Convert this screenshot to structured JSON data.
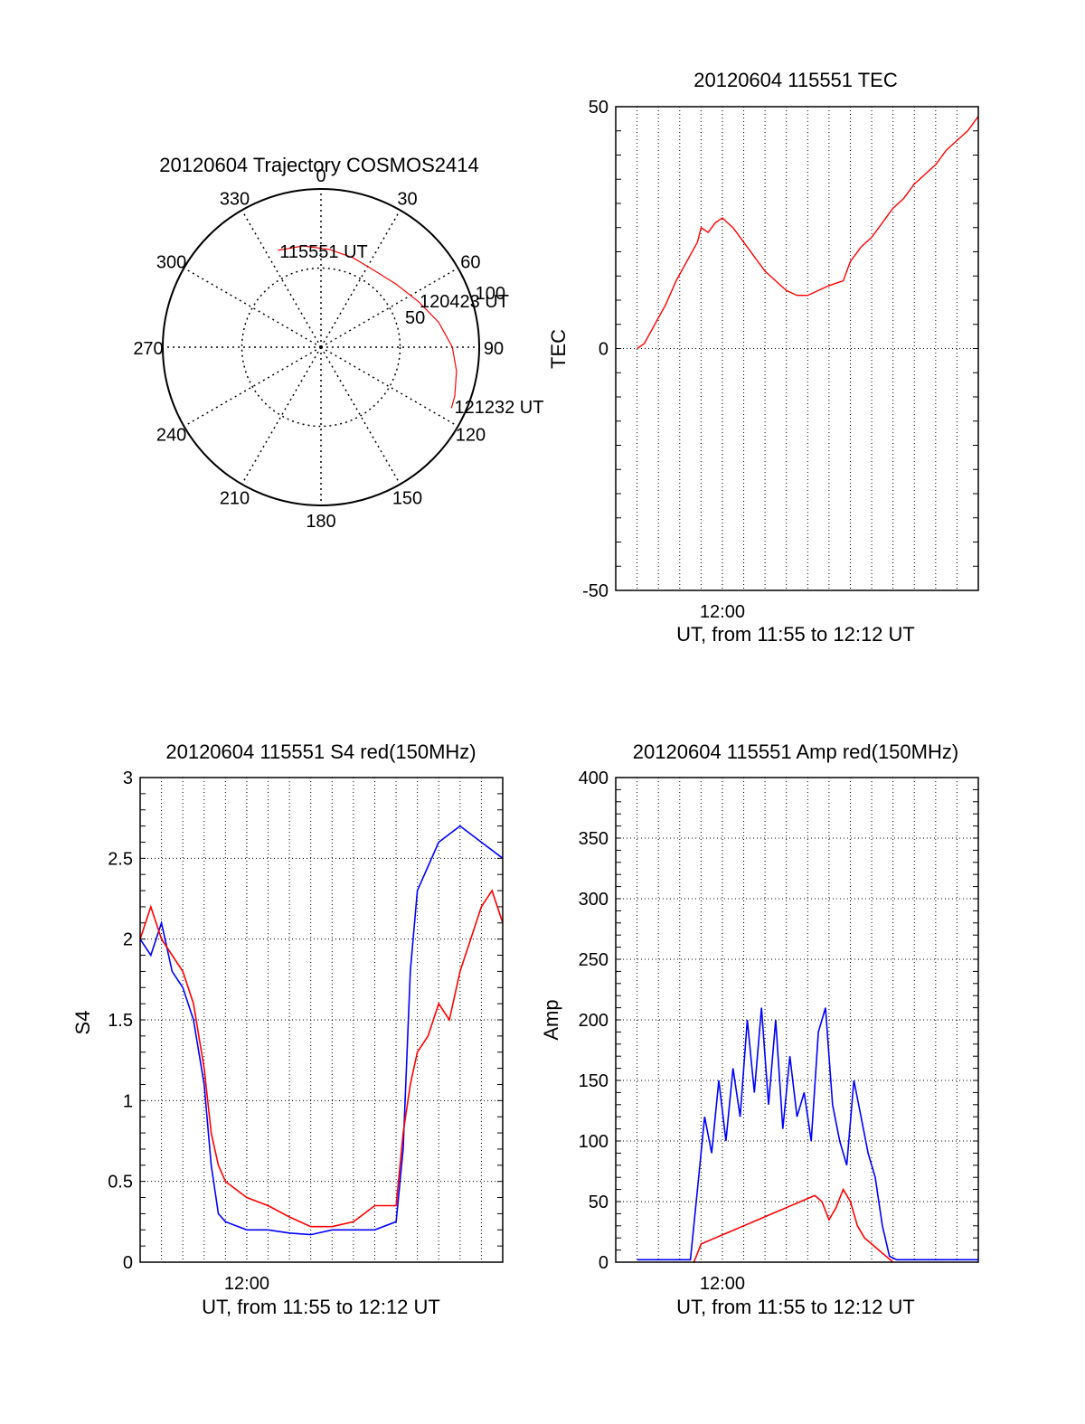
{
  "chart_data": [
    {
      "type": "polar",
      "title": "20120604 Trajectory COSMOS2414",
      "angle_labels": [
        "0",
        "30",
        "60",
        "90",
        "120",
        "150",
        "180",
        "210",
        "240",
        "270",
        "300",
        "330"
      ],
      "radius_labels": [
        "50",
        "100"
      ],
      "rlim": [
        0,
        100
      ],
      "grid": true,
      "series": [
        {
          "color": "#ff0000",
          "points": [
            {
              "az": 336,
              "r": 67
            },
            {
              "az": 350,
              "r": 65
            },
            {
              "az": 5,
              "r": 62
            },
            {
              "az": 20,
              "r": 60
            },
            {
              "az": 35,
              "r": 59
            },
            {
              "az": 50,
              "r": 62
            },
            {
              "az": 65,
              "r": 68
            },
            {
              "az": 78,
              "r": 76
            },
            {
              "az": 90,
              "r": 83
            },
            {
              "az": 100,
              "r": 87
            },
            {
              "az": 110,
              "r": 90
            },
            {
              "az": 115,
              "r": 91
            }
          ]
        }
      ],
      "annotations": [
        {
          "text": "115551 UT",
          "az": 336,
          "r": 67
        },
        {
          "text": "120423 UT",
          "az": 64,
          "r": 68
        },
        {
          "text": "121232 UT",
          "az": 114,
          "r": 91
        }
      ],
      "colors": {
        "trajectory": "#ff0000"
      }
    },
    {
      "type": "line",
      "title": "20120604 115551 TEC",
      "xlabel": "UT, from 11:55 to 12:12 UT",
      "ylabel": "TEC",
      "xlim": [
        "11:55:00",
        "12:12:00"
      ],
      "ylim": [
        -50,
        50
      ],
      "x_tick_labels": [
        {
          "x": "12:00:00",
          "label": "12:00"
        }
      ],
      "y_tick_labels": [
        "50",
        "0",
        "-50"
      ],
      "grid": true,
      "series": [
        {
          "color": "#ff0000",
          "points": [
            [
              "11:56:00",
              0
            ],
            [
              "11:56:20",
              1
            ],
            [
              "11:56:50",
              5
            ],
            [
              "11:57:20",
              9
            ],
            [
              "11:57:50",
              14
            ],
            [
              "11:58:20",
              18
            ],
            [
              "11:58:50",
              22
            ],
            [
              "11:59:00",
              25
            ],
            [
              "11:59:20",
              24
            ],
            [
              "11:59:40",
              26
            ],
            [
              "12:00:00",
              27
            ],
            [
              "12:00:30",
              25
            ],
            [
              "12:01:00",
              22
            ],
            [
              "12:01:30",
              19
            ],
            [
              "12:02:00",
              16
            ],
            [
              "12:02:30",
              14
            ],
            [
              "12:03:00",
              12
            ],
            [
              "12:03:30",
              11
            ],
            [
              "12:04:00",
              11
            ],
            [
              "12:04:30",
              12
            ],
            [
              "12:05:00",
              13
            ],
            [
              "12:05:40",
              14
            ],
            [
              "12:06:00",
              18
            ],
            [
              "12:06:30",
              21
            ],
            [
              "12:07:00",
              23
            ],
            [
              "12:07:30",
              26
            ],
            [
              "12:08:00",
              29
            ],
            [
              "12:08:30",
              31
            ],
            [
              "12:09:00",
              34
            ],
            [
              "12:09:30",
              36
            ],
            [
              "12:10:00",
              38
            ],
            [
              "12:10:30",
              41
            ],
            [
              "12:11:00",
              43
            ],
            [
              "12:11:30",
              45
            ],
            [
              "12:12:00",
              48
            ]
          ]
        }
      ]
    },
    {
      "type": "line",
      "title": "20120604 115551 S4 red(150MHz)",
      "xlabel": "UT, from 11:55 to 12:12 UT",
      "ylabel": "S4",
      "xlim": [
        "11:55:00",
        "12:12:00"
      ],
      "ylim": [
        0,
        3
      ],
      "x_tick_labels": [
        {
          "x": "12:00:00",
          "label": "12:00"
        }
      ],
      "y_tick_labels": [
        "0",
        "0.5",
        "1",
        "1.5",
        "2",
        "2.5",
        "3"
      ],
      "grid": true,
      "series": [
        {
          "color": "#0000ff",
          "points": [
            [
              "11:55:00",
              2.0
            ],
            [
              "11:55:30",
              1.9
            ],
            [
              "11:56:00",
              2.1
            ],
            [
              "11:56:30",
              1.8
            ],
            [
              "11:57:00",
              1.7
            ],
            [
              "11:57:30",
              1.5
            ],
            [
              "11:58:00",
              1.1
            ],
            [
              "11:58:20",
              0.6
            ],
            [
              "11:58:40",
              0.3
            ],
            [
              "11:59:00",
              0.25
            ],
            [
              "12:00:00",
              0.2
            ],
            [
              "12:01:00",
              0.2
            ],
            [
              "12:02:00",
              0.18
            ],
            [
              "12:03:00",
              0.17
            ],
            [
              "12:04:00",
              0.2
            ],
            [
              "12:05:00",
              0.2
            ],
            [
              "12:06:00",
              0.2
            ],
            [
              "12:07:00",
              0.25
            ],
            [
              "12:07:20",
              0.7
            ],
            [
              "12:07:40",
              1.8
            ],
            [
              "12:08:00",
              2.3
            ],
            [
              "12:09:00",
              2.6
            ],
            [
              "12:10:00",
              2.7
            ],
            [
              "12:11:00",
              2.6
            ],
            [
              "12:12:00",
              2.5
            ]
          ]
        },
        {
          "color": "#ff0000",
          "points": [
            [
              "11:55:00",
              2.0
            ],
            [
              "11:55:30",
              2.2
            ],
            [
              "11:56:00",
              2.0
            ],
            [
              "11:56:30",
              1.9
            ],
            [
              "11:57:00",
              1.8
            ],
            [
              "11:57:30",
              1.6
            ],
            [
              "11:58:00",
              1.2
            ],
            [
              "11:58:20",
              0.8
            ],
            [
              "11:58:40",
              0.6
            ],
            [
              "11:59:00",
              0.5
            ],
            [
              "11:59:30",
              0.45
            ],
            [
              "12:00:00",
              0.4
            ],
            [
              "12:01:00",
              0.35
            ],
            [
              "12:02:00",
              0.28
            ],
            [
              "12:03:00",
              0.22
            ],
            [
              "12:04:00",
              0.22
            ],
            [
              "12:05:00",
              0.25
            ],
            [
              "12:06:00",
              0.35
            ],
            [
              "12:07:00",
              0.35
            ],
            [
              "12:07:20",
              0.8
            ],
            [
              "12:07:40",
              1.1
            ],
            [
              "12:08:00",
              1.3
            ],
            [
              "12:08:30",
              1.4
            ],
            [
              "12:09:00",
              1.6
            ],
            [
              "12:09:30",
              1.5
            ],
            [
              "12:10:00",
              1.8
            ],
            [
              "12:10:30",
              2.0
            ],
            [
              "12:11:00",
              2.2
            ],
            [
              "12:11:30",
              2.3
            ],
            [
              "12:12:00",
              2.1
            ]
          ]
        }
      ]
    },
    {
      "type": "line",
      "title": "20120604 115551 Amp red(150MHz)",
      "xlabel": "UT, from 11:55 to 12:12 UT",
      "ylabel": "Amp",
      "xlim": [
        "11:55:00",
        "12:12:00"
      ],
      "ylim": [
        0,
        400
      ],
      "x_tick_labels": [
        {
          "x": "12:00:00",
          "label": "12:00"
        }
      ],
      "y_tick_labels": [
        "0",
        "50",
        "100",
        "150",
        "200",
        "250",
        "300",
        "350",
        "400"
      ],
      "grid": true,
      "series": [
        {
          "color": "#0000ff",
          "points": [
            [
              "11:56:00",
              2
            ],
            [
              "11:58:30",
              2
            ],
            [
              "11:58:50",
              60
            ],
            [
              "11:59:10",
              120
            ],
            [
              "11:59:30",
              90
            ],
            [
              "11:59:50",
              150
            ],
            [
              "12:00:10",
              100
            ],
            [
              "12:00:30",
              160
            ],
            [
              "12:00:50",
              120
            ],
            [
              "12:01:10",
              200
            ],
            [
              "12:01:30",
              140
            ],
            [
              "12:01:50",
              210
            ],
            [
              "12:02:10",
              130
            ],
            [
              "12:02:30",
              200
            ],
            [
              "12:02:50",
              110
            ],
            [
              "12:03:10",
              170
            ],
            [
              "12:03:30",
              120
            ],
            [
              "12:03:50",
              140
            ],
            [
              "12:04:10",
              100
            ],
            [
              "12:04:30",
              190
            ],
            [
              "12:04:50",
              210
            ],
            [
              "12:05:10",
              130
            ],
            [
              "12:05:30",
              100
            ],
            [
              "12:05:50",
              80
            ],
            [
              "12:06:10",
              150
            ],
            [
              "12:06:30",
              120
            ],
            [
              "12:06:50",
              90
            ],
            [
              "12:07:10",
              70
            ],
            [
              "12:07:30",
              30
            ],
            [
              "12:07:50",
              5
            ],
            [
              "12:08:10",
              2
            ],
            [
              "12:12:00",
              2
            ]
          ]
        },
        {
          "color": "#ff0000",
          "points": [
            [
              "11:58:40",
              0
            ],
            [
              "11:59:00",
              15
            ],
            [
              "11:59:40",
              20
            ],
            [
              "12:00:20",
              25
            ],
            [
              "12:01:00",
              30
            ],
            [
              "12:01:40",
              35
            ],
            [
              "12:02:20",
              40
            ],
            [
              "12:03:00",
              45
            ],
            [
              "12:03:40",
              50
            ],
            [
              "12:04:20",
              55
            ],
            [
              "12:04:40",
              50
            ],
            [
              "12:05:00",
              35
            ],
            [
              "12:05:20",
              45
            ],
            [
              "12:05:40",
              60
            ],
            [
              "12:06:00",
              50
            ],
            [
              "12:06:20",
              30
            ],
            [
              "12:06:40",
              20
            ],
            [
              "12:07:00",
              15
            ],
            [
              "12:07:20",
              10
            ],
            [
              "12:07:40",
              5
            ],
            [
              "12:08:00",
              0
            ]
          ]
        }
      ]
    }
  ]
}
